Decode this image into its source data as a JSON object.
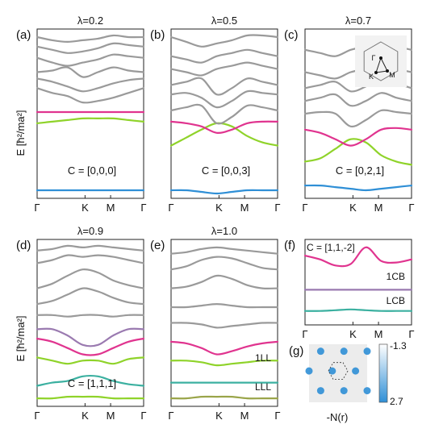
{
  "shared": {
    "ylabel": "E [ħ²/ma²]",
    "xticks": [
      "Γ",
      "K",
      "M",
      "Γ"
    ],
    "colors": {
      "gray": "#9a9a9a",
      "magenta": "#e0348f",
      "green": "#8fd32a",
      "blue": "#2f8fd6",
      "olive": "#9aa54a",
      "purple": "#9a7ab0",
      "teal": "#3bb0a0"
    }
  },
  "chart_data": [
    {
      "id": "a",
      "type": "line",
      "panel_label": "(a)",
      "title": "λ=0.2",
      "chern": "C = [0,0,0]",
      "band_labels": [],
      "bands": [
        {
          "color": "#2f8fd6",
          "y": [
            0.02,
            0.02,
            0.02,
            0.02,
            0.02,
            0.02,
            0.02,
            0.02
          ]
        },
        {
          "color": "#8fd32a",
          "y": [
            0.44,
            0.45,
            0.46,
            0.47,
            0.47,
            0.47,
            0.46,
            0.45
          ]
        },
        {
          "color": "#e0348f",
          "y": [
            0.51,
            0.51,
            0.51,
            0.51,
            0.51,
            0.51,
            0.51,
            0.51
          ]
        },
        {
          "color": "#9a9a9a",
          "y": [
            0.66,
            0.63,
            0.61,
            0.57,
            0.58,
            0.6,
            0.63,
            0.66
          ]
        },
        {
          "color": "#9a9a9a",
          "y": [
            0.72,
            0.7,
            0.67,
            0.64,
            0.66,
            0.69,
            0.71,
            0.72
          ]
        },
        {
          "color": "#9a9a9a",
          "y": [
            0.76,
            0.77,
            0.79,
            0.73,
            0.76,
            0.79,
            0.77,
            0.76
          ]
        },
        {
          "color": "#9a9a9a",
          "y": [
            0.85,
            0.82,
            0.8,
            0.82,
            0.84,
            0.87,
            0.86,
            0.85
          ]
        },
        {
          "color": "#9a9a9a",
          "y": [
            0.92,
            0.9,
            0.88,
            0.89,
            0.91,
            0.94,
            0.93,
            0.92
          ]
        },
        {
          "color": "#9a9a9a",
          "y": [
            0.98,
            0.96,
            0.95,
            0.96,
            0.97,
            0.99,
            0.98,
            0.98
          ]
        }
      ]
    },
    {
      "id": "b",
      "type": "line",
      "panel_label": "(b)",
      "title": "λ=0.5",
      "chern": "C = [0,0,3]",
      "band_labels": [],
      "bands": [
        {
          "color": "#2f8fd6",
          "y": [
            0.02,
            0.02,
            0.01,
            0.0,
            0.01,
            0.02,
            0.02,
            0.02
          ]
        },
        {
          "color": "#8fd32a",
          "y": [
            0.3,
            0.35,
            0.4,
            0.44,
            0.42,
            0.36,
            0.32,
            0.3
          ]
        },
        {
          "color": "#e0348f",
          "y": [
            0.45,
            0.44,
            0.42,
            0.38,
            0.4,
            0.44,
            0.45,
            0.45
          ]
        },
        {
          "color": "#9a9a9a",
          "y": [
            0.52,
            0.54,
            0.55,
            0.44,
            0.48,
            0.55,
            0.54,
            0.52
          ]
        },
        {
          "color": "#9a9a9a",
          "y": [
            0.62,
            0.63,
            0.6,
            0.54,
            0.58,
            0.64,
            0.63,
            0.62
          ]
        },
        {
          "color": "#9a9a9a",
          "y": [
            0.68,
            0.7,
            0.72,
            0.62,
            0.66,
            0.72,
            0.7,
            0.68
          ]
        },
        {
          "color": "#9a9a9a",
          "y": [
            0.78,
            0.76,
            0.74,
            0.78,
            0.8,
            0.82,
            0.8,
            0.78
          ]
        },
        {
          "color": "#9a9a9a",
          "y": [
            0.86,
            0.84,
            0.82,
            0.86,
            0.88,
            0.9,
            0.88,
            0.86
          ]
        },
        {
          "color": "#9a9a9a",
          "y": [
            0.98,
            0.95,
            0.92,
            0.94,
            0.96,
            0.99,
            0.99,
            0.98
          ]
        }
      ]
    },
    {
      "id": "c",
      "type": "line",
      "panel_label": "(c)",
      "title": "λ=0.7",
      "chern": "C = [0,2,1]",
      "band_labels": [],
      "inset": "hexagonal Brillouin zone with Γ, K, M path",
      "inset_labels": [
        "Γ",
        "K",
        "M"
      ],
      "bands": [
        {
          "color": "#2f8fd6",
          "y": [
            0.05,
            0.05,
            0.04,
            0.03,
            0.02,
            0.03,
            0.04,
            0.05
          ]
        },
        {
          "color": "#8fd32a",
          "y": [
            0.2,
            0.22,
            0.28,
            0.34,
            0.32,
            0.24,
            0.2,
            0.18
          ]
        },
        {
          "color": "#e0348f",
          "y": [
            0.4,
            0.38,
            0.34,
            0.3,
            0.34,
            0.4,
            0.41,
            0.4
          ]
        },
        {
          "color": "#9a9a9a",
          "y": [
            0.5,
            0.51,
            0.5,
            0.42,
            0.46,
            0.52,
            0.51,
            0.5
          ]
        },
        {
          "color": "#9a9a9a",
          "y": [
            0.58,
            0.6,
            0.62,
            0.55,
            0.58,
            0.63,
            0.6,
            0.58
          ]
        },
        {
          "color": "#9a9a9a",
          "y": [
            0.66,
            0.68,
            0.7,
            0.64,
            0.67,
            0.72,
            0.69,
            0.66
          ]
        },
        {
          "color": "#9a9a9a",
          "y": [
            0.76,
            0.74,
            0.72,
            0.76,
            0.78,
            0.8,
            0.78,
            0.76
          ]
        },
        {
          "color": "#9a9a9a",
          "y": [
            0.9,
            0.88,
            0.86,
            0.9,
            0.92,
            0.94,
            0.92,
            0.9
          ]
        }
      ]
    },
    {
      "id": "d",
      "type": "line",
      "panel_label": "(d)",
      "title": "λ=0.9",
      "chern": "C = [1,1,1]",
      "band_labels": [],
      "bands": [
        {
          "color": "#8fd32a",
          "y": [
            0.02,
            0.02,
            0.03,
            0.03,
            0.03,
            0.02,
            0.02,
            0.02
          ]
        },
        {
          "color": "#3bb0a0",
          "y": [
            0.1,
            0.12,
            0.13,
            0.16,
            0.16,
            0.13,
            0.11,
            0.1
          ]
        },
        {
          "color": "#8fd32a",
          "y": [
            0.28,
            0.26,
            0.24,
            0.26,
            0.26,
            0.24,
            0.27,
            0.28
          ]
        },
        {
          "color": "#e0348f",
          "y": [
            0.4,
            0.38,
            0.34,
            0.3,
            0.3,
            0.34,
            0.38,
            0.4
          ]
        },
        {
          "color": "#9a7ab0",
          "y": [
            0.46,
            0.46,
            0.42,
            0.36,
            0.36,
            0.42,
            0.46,
            0.46
          ]
        },
        {
          "color": "#9a9a9a",
          "y": [
            0.55,
            0.55,
            0.54,
            0.55,
            0.55,
            0.54,
            0.55,
            0.55
          ]
        },
        {
          "color": "#9a9a9a",
          "y": [
            0.62,
            0.64,
            0.68,
            0.72,
            0.7,
            0.66,
            0.63,
            0.62
          ]
        },
        {
          "color": "#9a9a9a",
          "y": [
            0.72,
            0.75,
            0.8,
            0.84,
            0.82,
            0.77,
            0.74,
            0.72
          ]
        },
        {
          "color": "#9a9a9a",
          "y": [
            0.88,
            0.9,
            0.93,
            0.92,
            0.93,
            0.92,
            0.9,
            0.88
          ]
        },
        {
          "color": "#9a9a9a",
          "y": [
            0.96,
            0.97,
            0.99,
            0.98,
            0.99,
            0.98,
            0.97,
            0.96
          ]
        }
      ]
    },
    {
      "id": "e",
      "type": "line",
      "panel_label": "(e)",
      "title": "λ=1.0",
      "chern": "",
      "band_labels": [
        "1LL",
        "LLL"
      ],
      "bands": [
        {
          "color": "#9aa54a",
          "y": [
            0.02,
            0.02,
            0.03,
            0.03,
            0.03,
            0.02,
            0.02,
            0.02
          ]
        },
        {
          "color": "#3bb0a0",
          "y": [
            0.12,
            0.12,
            0.12,
            0.12,
            0.12,
            0.12,
            0.12,
            0.12
          ]
        },
        {
          "color": "#8fd32a",
          "y": [
            0.26,
            0.26,
            0.25,
            0.23,
            0.24,
            0.25,
            0.26,
            0.26
          ]
        },
        {
          "color": "#e0348f",
          "y": [
            0.38,
            0.37,
            0.34,
            0.3,
            0.32,
            0.35,
            0.37,
            0.38
          ]
        },
        {
          "color": "#9a9a9a",
          "y": [
            0.5,
            0.5,
            0.49,
            0.47,
            0.48,
            0.49,
            0.5,
            0.5
          ]
        },
        {
          "color": "#9a9a9a",
          "y": [
            0.6,
            0.6,
            0.61,
            0.62,
            0.61,
            0.6,
            0.6,
            0.6
          ]
        },
        {
          "color": "#9a9a9a",
          "y": [
            0.72,
            0.73,
            0.76,
            0.8,
            0.78,
            0.74,
            0.72,
            0.72
          ]
        },
        {
          "color": "#9a9a9a",
          "y": [
            0.84,
            0.86,
            0.9,
            0.92,
            0.91,
            0.88,
            0.85,
            0.84
          ]
        },
        {
          "color": "#9a9a9a",
          "y": [
            0.94,
            0.95,
            0.97,
            0.98,
            0.97,
            0.96,
            0.95,
            0.94
          ]
        }
      ]
    },
    {
      "id": "f",
      "type": "line",
      "panel_label": "(f)",
      "title": "",
      "chern": "C = [1,1,-2]",
      "band_labels": [
        "1CB",
        "LCB"
      ],
      "bands": [
        {
          "color": "#3bb0a0",
          "y": [
            0.12,
            0.12,
            0.13,
            0.14,
            0.13,
            0.12,
            0.12,
            0.12
          ]
        },
        {
          "color": "#9a7ab0",
          "y": [
            0.4,
            0.4,
            0.4,
            0.4,
            0.4,
            0.4,
            0.4,
            0.4
          ]
        },
        {
          "color": "#e0348f",
          "y": [
            0.85,
            0.8,
            0.72,
            0.74,
            0.96,
            0.78,
            0.76,
            0.8
          ]
        }
      ]
    },
    {
      "id": "g",
      "type": "heatmap",
      "panel_label": "(g)",
      "title": "",
      "chern": "",
      "band_labels": [],
      "colorbar": {
        "ticks": [
          "-1.3",
          "2.7"
        ],
        "cmap": [
          "#ffffff",
          "#2f8fd6"
        ]
      },
      "xlabel": "-N(r)"
    }
  ]
}
